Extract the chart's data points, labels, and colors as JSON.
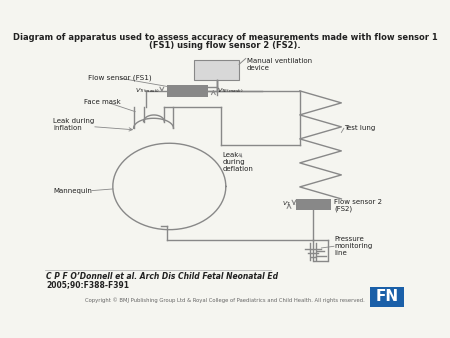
{
  "title_line1": "Diagram of apparatus used to assess accuracy of measurements made with flow sensor 1",
  "title_line2": "(FS1) using flow sensor 2 (FS2).",
  "bg_color": "#f5f5f0",
  "line_color": "#888888",
  "text_color": "#222222",
  "gray_block": "#888888",
  "citation_line1": "C P F O’Donnell et al. Arch Dis Child Fetal Neonatal Ed",
  "citation_line2": "2005;90:F388-F391",
  "copyright_text": "Copyright © BMJ Publishing Group Ltd & Royal College of Paediatrics and Child Health. All rights reserved.",
  "fn_box_color": "#1a5fa8",
  "fn_text_color": "#ffffff"
}
